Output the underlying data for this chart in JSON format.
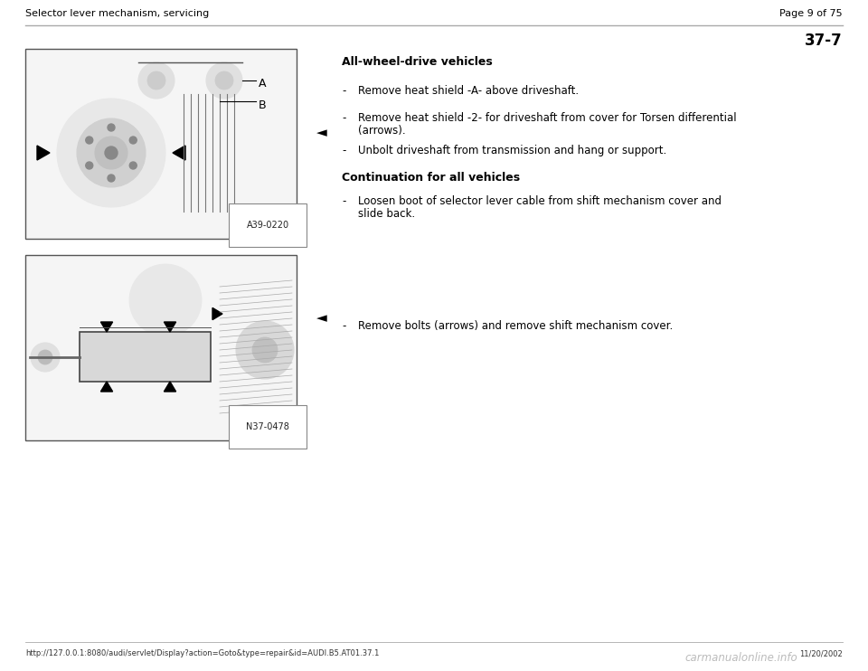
{
  "bg_color": "#ffffff",
  "header_left": "Selector lever mechanism, servicing",
  "header_right": "Page 9 of 75",
  "section_number": "37-7",
  "section_heading1": "All-wheel-drive vehicles",
  "section_heading2": "Continuation for all vehicles",
  "bullet_group1_line1": "Remove heat shield -A- above driveshaft.",
  "bullet_group1_line2a": "Remove heat shield -2- for driveshaft from cover for Torsen differential",
  "bullet_group1_line2b": "(arrows).",
  "bullet_group1_line3": "Unbolt driveshaft from transmission and hang or support.",
  "bullet_group2_line1a": "Loosen boot of selector lever cable from shift mechanism cover and",
  "bullet_group2_line1b": "slide back.",
  "bullet_group3_line1": "Remove bolts (arrows) and remove shift mechanism cover.",
  "fig1_label": "A39-0220",
  "fig2_label": "N37-0478",
  "footer_url": "http://127.0.0.1:8080/audi/servlet/Display?action=Goto&type=repair&id=AUDI.B5.AT01.37.1",
  "footer_date": "11/20/2002",
  "footer_watermark": "carmanualonline.info",
  "header_line_color": "#aaaaaa",
  "text_color": "#000000",
  "fig_border_color": "#555555",
  "fig_bg_color": "#f5f5f5",
  "header_fontsize": 8.0,
  "body_fontsize": 8.5,
  "bold_fontsize": 9.0,
  "section_num_fontsize": 12,
  "label_fontsize": 7.0
}
